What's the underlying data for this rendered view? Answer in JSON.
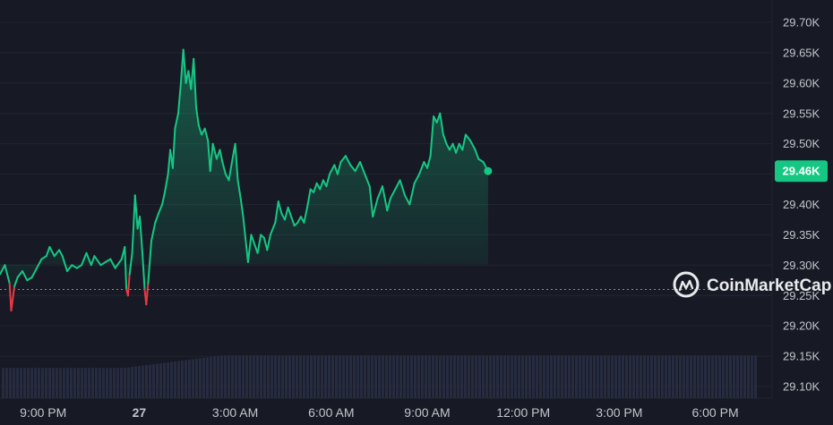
{
  "brand": {
    "name": "CoinMarketCap",
    "icon": "coinmarketcap-logo-icon"
  },
  "colors": {
    "background": "#171924",
    "up_line": "#16c784",
    "down_line": "#ea3943",
    "grid": "#222531",
    "volume": "#262b40",
    "baseline": "#8a8d99",
    "axis_text": "#c3c5cb"
  },
  "chart_data": {
    "type": "area",
    "title": "",
    "xlabel": "",
    "ylabel": "",
    "ylim": [
      29.08,
      29.72
    ],
    "y_ticks": [
      "29.70K",
      "29.65K",
      "29.60K",
      "29.55K",
      "29.50K",
      "29.45K",
      "29.40K",
      "29.35K",
      "29.30K",
      "29.25K",
      "29.20K",
      "29.15K",
      "29.10K"
    ],
    "y_tick_values": [
      29.7,
      29.65,
      29.6,
      29.55,
      29.5,
      29.45,
      29.4,
      29.35,
      29.3,
      29.25,
      29.2,
      29.15,
      29.1
    ],
    "x_ticks": [
      {
        "label": "9:00 PM",
        "t": 21
      },
      {
        "label": "27",
        "t": 24,
        "bold": true
      },
      {
        "label": "3:00 AM",
        "t": 27
      },
      {
        "label": "6:00 AM",
        "t": 30
      },
      {
        "label": "9:00 AM",
        "t": 33
      },
      {
        "label": "12:00 PM",
        "t": 36
      },
      {
        "label": "3:00 PM",
        "t": 39
      },
      {
        "label": "6:00 PM",
        "t": 42
      }
    ],
    "x_range_hours": [
      19.65,
      43.3
    ],
    "baseline_price": 29.26,
    "current_price": 29.455,
    "current_price_label": "29.46K",
    "grid": true,
    "series": [
      {
        "points": [
          [
            19.65,
            29.285
          ],
          [
            19.8,
            29.3
          ],
          [
            19.95,
            29.27
          ],
          [
            20.0,
            29.225
          ],
          [
            20.1,
            29.265
          ],
          [
            20.2,
            29.28
          ],
          [
            20.35,
            29.29
          ],
          [
            20.5,
            29.275
          ],
          [
            20.65,
            29.28
          ],
          [
            20.8,
            29.295
          ],
          [
            20.95,
            29.31
          ],
          [
            21.1,
            29.315
          ],
          [
            21.2,
            29.33
          ],
          [
            21.35,
            29.315
          ],
          [
            21.5,
            29.325
          ],
          [
            21.6,
            29.315
          ],
          [
            21.75,
            29.29
          ],
          [
            21.9,
            29.3
          ],
          [
            22.05,
            29.295
          ],
          [
            22.2,
            29.3
          ],
          [
            22.35,
            29.32
          ],
          [
            22.5,
            29.3
          ],
          [
            22.6,
            29.315
          ],
          [
            22.8,
            29.3
          ],
          [
            22.95,
            29.305
          ],
          [
            23.1,
            29.31
          ],
          [
            23.25,
            29.295
          ],
          [
            23.45,
            29.31
          ],
          [
            23.55,
            29.33
          ],
          [
            23.6,
            29.26
          ],
          [
            23.65,
            29.25
          ],
          [
            23.7,
            29.285
          ],
          [
            23.78,
            29.32
          ],
          [
            23.87,
            29.415
          ],
          [
            23.95,
            29.36
          ],
          [
            24.02,
            29.38
          ],
          [
            24.1,
            29.32
          ],
          [
            24.17,
            29.26
          ],
          [
            24.22,
            29.235
          ],
          [
            24.28,
            29.27
          ],
          [
            24.38,
            29.34
          ],
          [
            24.5,
            29.37
          ],
          [
            24.6,
            29.385
          ],
          [
            24.72,
            29.4
          ],
          [
            24.8,
            29.42
          ],
          [
            24.9,
            29.45
          ],
          [
            24.97,
            29.49
          ],
          [
            25.05,
            29.46
          ],
          [
            25.12,
            29.525
          ],
          [
            25.22,
            29.55
          ],
          [
            25.3,
            29.6
          ],
          [
            25.38,
            29.655
          ],
          [
            25.46,
            29.6
          ],
          [
            25.54,
            29.62
          ],
          [
            25.62,
            29.59
          ],
          [
            25.7,
            29.64
          ],
          [
            25.78,
            29.56
          ],
          [
            25.86,
            29.53
          ],
          [
            25.95,
            29.515
          ],
          [
            26.05,
            29.525
          ],
          [
            26.15,
            29.505
          ],
          [
            26.22,
            29.455
          ],
          [
            26.3,
            29.5
          ],
          [
            26.42,
            29.475
          ],
          [
            26.52,
            29.49
          ],
          [
            26.6,
            29.47
          ],
          [
            26.7,
            29.45
          ],
          [
            26.8,
            29.44
          ],
          [
            26.9,
            29.47
          ],
          [
            27.0,
            29.5
          ],
          [
            27.08,
            29.44
          ],
          [
            27.17,
            29.41
          ],
          [
            27.25,
            29.38
          ],
          [
            27.35,
            29.33
          ],
          [
            27.4,
            29.305
          ],
          [
            27.5,
            29.35
          ],
          [
            27.6,
            29.335
          ],
          [
            27.7,
            29.32
          ],
          [
            27.8,
            29.35
          ],
          [
            27.9,
            29.345
          ],
          [
            28.0,
            29.325
          ],
          [
            28.1,
            29.35
          ],
          [
            28.25,
            29.37
          ],
          [
            28.35,
            29.405
          ],
          [
            28.45,
            29.385
          ],
          [
            28.55,
            29.375
          ],
          [
            28.65,
            29.395
          ],
          [
            28.75,
            29.38
          ],
          [
            28.85,
            29.365
          ],
          [
            28.95,
            29.37
          ],
          [
            29.05,
            29.38
          ],
          [
            29.15,
            29.37
          ],
          [
            29.25,
            29.395
          ],
          [
            29.35,
            29.425
          ],
          [
            29.45,
            29.42
          ],
          [
            29.55,
            29.435
          ],
          [
            29.65,
            29.425
          ],
          [
            29.75,
            29.44
          ],
          [
            29.85,
            29.43
          ],
          [
            29.95,
            29.45
          ],
          [
            30.1,
            29.465
          ],
          [
            30.2,
            29.45
          ],
          [
            30.3,
            29.47
          ],
          [
            30.45,
            29.48
          ],
          [
            30.6,
            29.465
          ],
          [
            30.75,
            29.455
          ],
          [
            30.9,
            29.47
          ],
          [
            31.05,
            29.45
          ],
          [
            31.2,
            29.43
          ],
          [
            31.3,
            29.38
          ],
          [
            31.45,
            29.41
          ],
          [
            31.6,
            29.43
          ],
          [
            31.75,
            29.39
          ],
          [
            31.85,
            29.41
          ],
          [
            32.0,
            29.425
          ],
          [
            32.15,
            29.44
          ],
          [
            32.3,
            29.415
          ],
          [
            32.45,
            29.4
          ],
          [
            32.6,
            29.435
          ],
          [
            32.75,
            29.45
          ],
          [
            32.9,
            29.47
          ],
          [
            33.0,
            29.46
          ],
          [
            33.1,
            29.48
          ],
          [
            33.2,
            29.545
          ],
          [
            33.3,
            29.535
          ],
          [
            33.4,
            29.55
          ],
          [
            33.5,
            29.515
          ],
          [
            33.6,
            29.5
          ],
          [
            33.7,
            29.49
          ],
          [
            33.8,
            29.5
          ],
          [
            33.9,
            29.485
          ],
          [
            34.0,
            29.5
          ],
          [
            34.1,
            29.49
          ],
          [
            34.2,
            29.515
          ],
          [
            34.35,
            29.505
          ],
          [
            34.5,
            29.49
          ],
          [
            34.6,
            29.475
          ],
          [
            34.75,
            29.47
          ],
          [
            34.9,
            29.455
          ]
        ]
      }
    ],
    "volume": {
      "start": 0.085,
      "end": 0.16,
      "note_shape": "flat-rising"
    }
  }
}
